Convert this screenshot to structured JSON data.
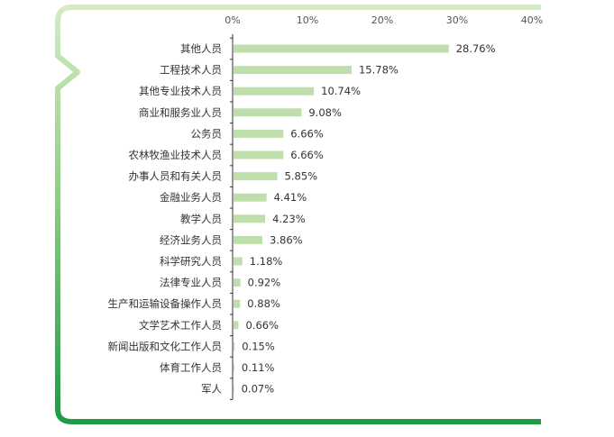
{
  "colors": {
    "bar": "#bedfac",
    "frame_green_light": "#cfe8bd",
    "frame_green_dark": "#1f9a45",
    "axis": "#333333",
    "text": "#333333"
  },
  "chart_data": {
    "type": "bar",
    "orientation": "horizontal",
    "xlim": [
      0,
      40
    ],
    "xticks": [
      0,
      10,
      20,
      30,
      40
    ],
    "xtick_labels": [
      "0%",
      "10%",
      "20%",
      "30%",
      "40%"
    ],
    "grid": false,
    "categories": [
      "其他人员",
      "工程技术人员",
      "其他专业技术人员",
      "商业和服务业人员",
      "公务员",
      "农林牧渔业技术人员",
      "办事人员和有关人员",
      "金融业务人员",
      "教学人员",
      "经济业务人员",
      "科学研究人员",
      "法律专业人员",
      "生产和运输设备操作人员",
      "文学艺术工作人员",
      "新闻出版和文化工作人员",
      "体育工作人员",
      "军人"
    ],
    "values": [
      28.76,
      15.78,
      10.74,
      9.08,
      6.66,
      6.66,
      5.85,
      4.41,
      4.23,
      3.86,
      1.18,
      0.92,
      0.88,
      0.66,
      0.15,
      0.11,
      0.07
    ],
    "value_labels": [
      "28.76%",
      "15.78%",
      "10.74%",
      "9.08%",
      "6.66%",
      "6.66%",
      "5.85%",
      "4.41%",
      "4.23%",
      "3.86%",
      "1.18%",
      "0.92%",
      "0.88%",
      "0.66%",
      "0.15%",
      "0.11%",
      "0.07%"
    ]
  }
}
